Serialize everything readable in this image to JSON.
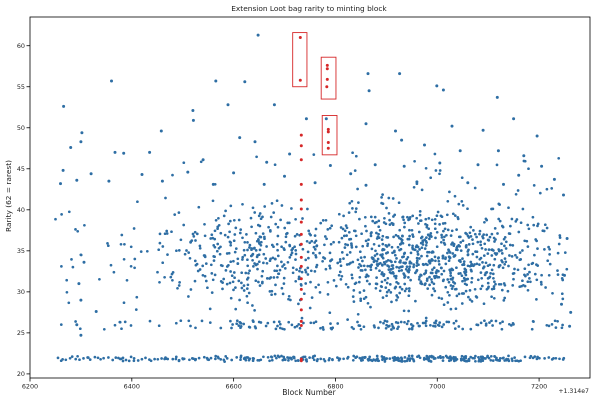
{
  "chart_data": {
    "type": "scatter",
    "title": "Extension Loot bag rarity to minting block",
    "xlabel": "Block Number",
    "ylabel": "Rarity (62 = rarest)",
    "x_offset_label": "+1.314e7",
    "xlim": [
      6200,
      7300
    ],
    "ylim": [
      19.5,
      63.5
    ],
    "x_ticks": [
      6200,
      6400,
      6600,
      6800,
      7000,
      7200
    ],
    "y_ticks": [
      20,
      25,
      30,
      35,
      40,
      45,
      50,
      55,
      60
    ],
    "grid": false,
    "colors": {
      "main": "#2e6ea4",
      "highlight": "#d62728",
      "box": "#d62728"
    },
    "series": [
      {
        "description_key": "blue",
        "points": [
          [
            6648,
            61.3
          ],
          [
            6565,
            55.7
          ],
          [
            6622,
            55.6
          ],
          [
            6360,
            55.7
          ],
          [
            6864,
            56.6
          ],
          [
            6926,
            56.6
          ],
          [
            6999,
            55.1
          ],
          [
            7012,
            54.6
          ],
          [
            6866,
            54.5
          ],
          [
            6266,
            52.6
          ],
          [
            6520,
            52.1
          ],
          [
            6589,
            52.8
          ],
          [
            6680,
            52.8
          ],
          [
            7118,
            53.7
          ],
          [
            6302,
            49.4
          ],
          [
            6458,
            49.6
          ],
          [
            6521,
            50.9
          ],
          [
            6743,
            51.1
          ],
          [
            6782,
            51.1
          ],
          [
            7150,
            51.1
          ],
          [
            7029,
            50.2
          ],
          [
            6860,
            50.5
          ],
          [
            6918,
            49.6
          ],
          [
            7090,
            49.7
          ],
          [
            7196,
            49.0
          ],
          [
            6612,
            48.8
          ],
          [
            6642,
            48.3
          ],
          [
            6300,
            48.3
          ],
          [
            6280,
            47.6
          ],
          [
            6367,
            47.0
          ],
          [
            6384,
            46.9
          ],
          [
            6435,
            47.0
          ],
          [
            6930,
            48.5
          ],
          [
            6975,
            47.9
          ],
          [
            7045,
            47.2
          ],
          [
            7120,
            47.2
          ],
          [
            7170,
            46.6
          ],
          [
            6710,
            46.8
          ],
          [
            6665,
            45.8
          ],
          [
            6540,
            46.1
          ],
          [
            6790,
            45.4
          ],
          [
            6878,
            45.5
          ],
          [
            6935,
            45.3
          ],
          [
            7005,
            45.7
          ],
          [
            7080,
            45.5
          ],
          [
            7205,
            45.3
          ],
          [
            6265,
            44.8
          ],
          [
            6320,
            44.4
          ],
          [
            6420,
            44.3
          ],
          [
            6510,
            44.6
          ],
          [
            6600,
            44.5
          ],
          [
            6700,
            44.1
          ],
          [
            6830,
            44.4
          ],
          [
            7160,
            44.2
          ],
          [
            6260,
            43.2
          ],
          [
            6292,
            43.6
          ],
          [
            6355,
            43.5
          ],
          [
            6460,
            43.5
          ],
          [
            6560,
            43.1
          ],
          [
            6660,
            43.1
          ],
          [
            6760,
            43.3
          ],
          [
            6860,
            43.0
          ],
          [
            6960,
            43.4
          ],
          [
            7060,
            43.3
          ],
          [
            7130,
            43.1
          ],
          [
            7230,
            43.7
          ],
          [
            7248,
            41.8
          ],
          [
            7255,
            36.5
          ],
          [
            7250,
            32.0
          ],
          [
            7244,
            28.5
          ],
          [
            7260,
            25.8
          ],
          [
            7262,
            27.5
          ],
          [
            6300,
            29.0
          ],
          [
            6296,
            31.0
          ],
          [
            6306,
            33.6
          ],
          [
            6292,
            26.0
          ],
          [
            6300,
            24.7
          ],
          [
            6330,
            27.6
          ]
        ]
      },
      {
        "description_key": "red",
        "points": [
          [
            6731,
            61.0
          ],
          [
            6731,
            55.8
          ],
          [
            6784,
            57.6
          ],
          [
            6784,
            57.2
          ],
          [
            6784,
            55.9
          ],
          [
            6783,
            55.0
          ],
          [
            6786,
            49.8
          ],
          [
            6786,
            49.5
          ],
          [
            6786,
            48.2
          ],
          [
            6786,
            47.5
          ],
          [
            6733,
            49.1
          ],
          [
            6733,
            47.8
          ],
          [
            6733,
            46.1
          ],
          [
            6733,
            43.1
          ],
          [
            6733,
            41.2
          ],
          [
            6733,
            40.1
          ],
          [
            6733,
            38.5
          ],
          [
            6733,
            37.0
          ],
          [
            6733,
            35.8
          ],
          [
            6733,
            34.2
          ],
          [
            6733,
            33.1
          ],
          [
            6733,
            31.6
          ],
          [
            6733,
            30.3
          ],
          [
            6733,
            29.1
          ],
          [
            6733,
            27.8
          ],
          [
            6733,
            26.4
          ],
          [
            6733,
            25.9
          ],
          [
            6733,
            21.8
          ],
          [
            6733,
            21.6
          ]
        ]
      }
    ],
    "highlight_boxes": [
      {
        "x": [
          6716,
          6744
        ],
        "y": [
          55.0,
          61.6
        ]
      },
      {
        "x": [
          6772,
          6801
        ],
        "y": [
          53.5,
          58.6
        ]
      },
      {
        "x": [
          6774,
          6803
        ],
        "y": [
          46.7,
          51.5
        ]
      }
    ]
  }
}
